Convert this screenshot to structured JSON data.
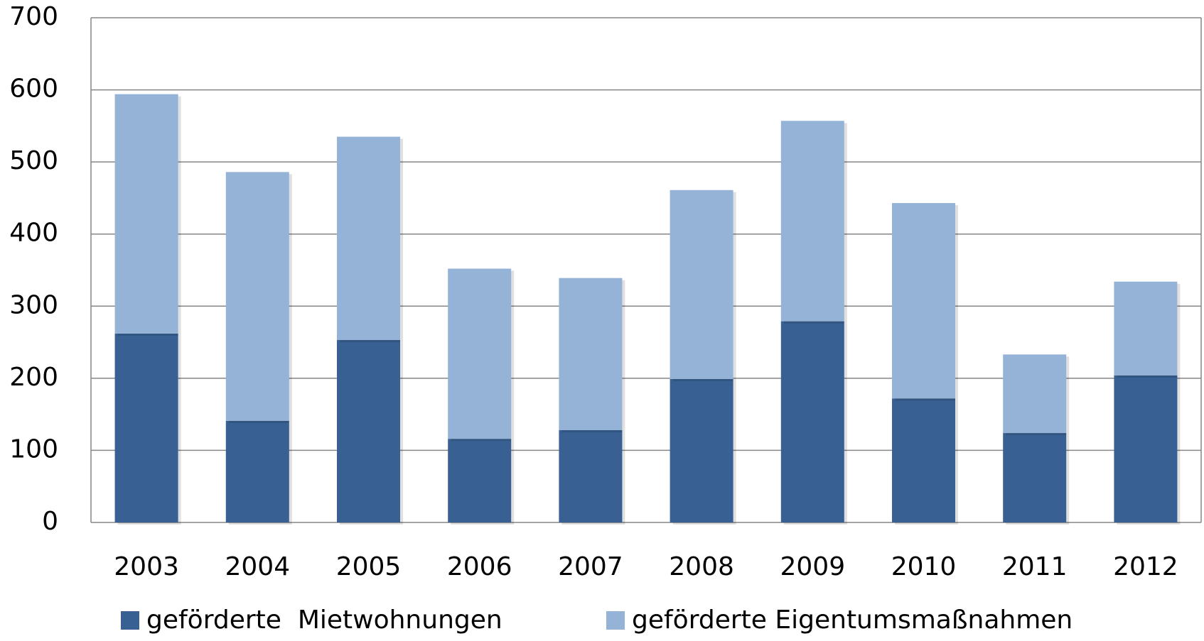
{
  "chart_data": {
    "type": "bar",
    "stacked": true,
    "categories": [
      "2003",
      "2004",
      "2005",
      "2006",
      "2007",
      "2008",
      "2009",
      "2010",
      "2011",
      "2012"
    ],
    "series": [
      {
        "name": "geförderte  Mietwohnungen",
        "color": "#386092",
        "values": [
          262,
          141,
          253,
          116,
          128,
          199,
          279,
          172,
          124,
          204
        ]
      },
      {
        "name": "geförderte Eigentumsmaßnahmen",
        "color": "#95b3d7",
        "values": [
          332,
          345,
          282,
          236,
          211,
          262,
          278,
          271,
          109,
          130
        ]
      }
    ],
    "ylim": [
      0,
      700
    ],
    "yticks": [
      0,
      100,
      200,
      300,
      400,
      500,
      600,
      700
    ],
    "grid": true,
    "legend": "bottom"
  }
}
